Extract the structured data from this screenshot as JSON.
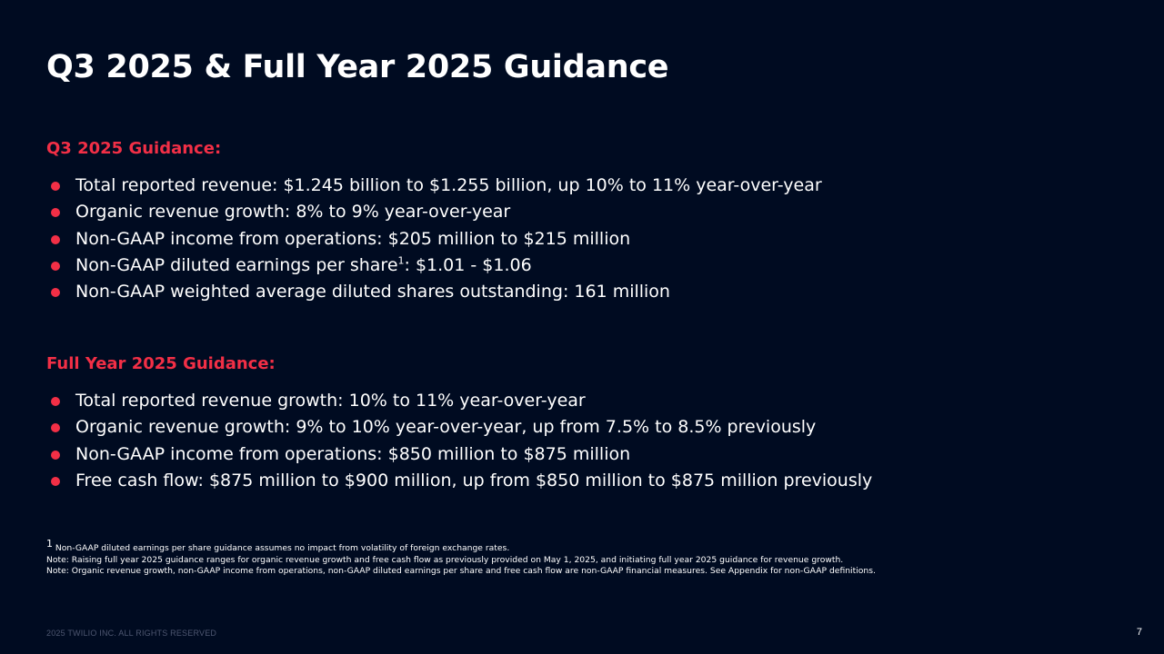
{
  "slide": {
    "title": "Q3 2025 & Full Year 2025 Guidance",
    "page_number": "7",
    "copyright": "2025 TWILIO INC. ALL RIGHTS RESERVED"
  },
  "q3": {
    "heading": "Q3 2025 Guidance:",
    "items": [
      "Total reported revenue: $1.245 billion to $1.255 billion, up 10% to 11% year-over-year",
      "Organic revenue growth: 8% to 9% year-over-year",
      "Non-GAAP income from operations: $205 million to $215 million",
      {
        "before": "Non-GAAP diluted earnings per share",
        "sup": "1",
        "after": ": $1.01 - $1.06"
      },
      "Non-GAAP weighted average diluted shares outstanding: 161 million"
    ]
  },
  "full_year": {
    "heading": "Full Year 2025 Guidance:",
    "items": [
      "Total reported revenue growth: 10% to 11% year-over-year",
      "Organic revenue growth: 9% to 10% year-over-year, up from 7.5% to 8.5% previously",
      "Non-GAAP income from operations: $850 million to $875 million",
      "Free cash flow: $875 million to $900 million, up from $850 million to $875 million previously"
    ]
  },
  "footnotes": {
    "f1_marker": "1",
    "f1_text": " Non-GAAP diluted earnings per share guidance assumes no impact from volatility of foreign exchange rates.",
    "note1": "Note: Raising full year 2025 guidance ranges for organic revenue growth and free cash flow as previously provided on May 1, 2025, and initiating full year 2025 guidance for revenue growth.",
    "note2": "Note: Organic revenue growth, non-GAAP income from operations, non-GAAP diluted earnings per share and free cash flow are non-GAAP financial measures. See Appendix for non-GAAP definitions."
  }
}
